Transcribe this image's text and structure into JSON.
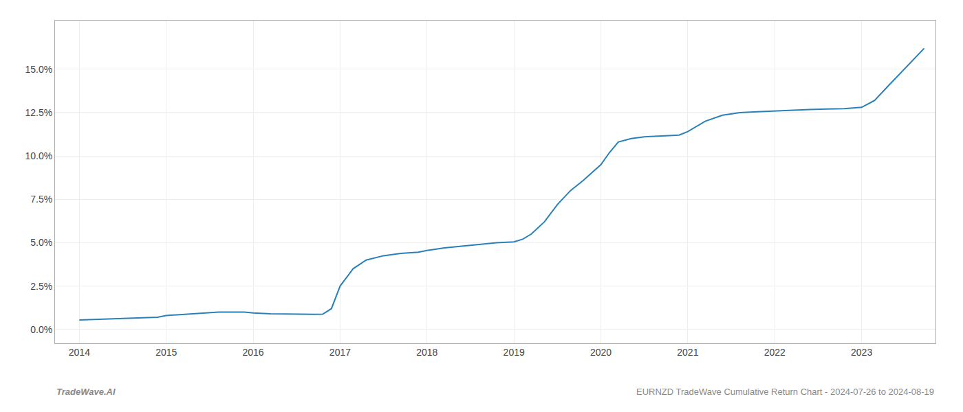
{
  "chart_data": {
    "type": "line",
    "x": [
      2014.0,
      2014.3,
      2014.6,
      2014.9,
      2015.0,
      2015.3,
      2015.6,
      2015.9,
      2016.0,
      2016.2,
      2016.4,
      2016.55,
      2016.65,
      2016.7,
      2016.8,
      2016.9,
      2017.0,
      2017.15,
      2017.3,
      2017.5,
      2017.7,
      2017.9,
      2018.0,
      2018.2,
      2018.4,
      2018.6,
      2018.8,
      2019.0,
      2019.1,
      2019.2,
      2019.35,
      2019.5,
      2019.65,
      2019.8,
      2020.0,
      2020.1,
      2020.2,
      2020.35,
      2020.5,
      2020.7,
      2020.9,
      2021.0,
      2021.2,
      2021.4,
      2021.6,
      2021.8,
      2022.0,
      2022.2,
      2022.4,
      2022.6,
      2022.8,
      2023.0,
      2023.15,
      2023.3,
      2023.45,
      2023.6,
      2023.72
    ],
    "values": [
      0.55,
      0.6,
      0.65,
      0.7,
      0.8,
      0.9,
      1.0,
      1.0,
      0.95,
      0.9,
      0.88,
      0.87,
      0.87,
      0.87,
      0.88,
      1.2,
      2.5,
      3.5,
      4.0,
      4.25,
      4.38,
      4.45,
      4.55,
      4.7,
      4.8,
      4.9,
      5.0,
      5.05,
      5.2,
      5.5,
      6.2,
      7.2,
      8.0,
      8.6,
      9.5,
      10.2,
      10.8,
      11.0,
      11.1,
      11.15,
      11.2,
      11.4,
      12.0,
      12.35,
      12.5,
      12.55,
      12.6,
      12.65,
      12.68,
      12.7,
      12.72,
      12.8,
      13.2,
      14.0,
      14.8,
      15.6,
      16.2
    ],
    "color": "#2980b9",
    "xlim": [
      2013.72,
      2023.85
    ],
    "xticks": [
      2014,
      2015,
      2016,
      2017,
      2018,
      2019,
      2020,
      2021,
      2022,
      2023
    ],
    "ylim": [
      -0.8,
      17.8
    ],
    "yticks": [
      {
        "value": 0.0,
        "label": "0.0%"
      },
      {
        "value": 2.5,
        "label": "2.5%"
      },
      {
        "value": 5.0,
        "label": "5.0%"
      },
      {
        "value": 7.5,
        "label": "7.5%"
      },
      {
        "value": 10.0,
        "label": "10.0%"
      },
      {
        "value": 12.5,
        "label": "12.5%"
      },
      {
        "value": 15.0,
        "label": "15.0%"
      }
    ],
    "grid": true,
    "annotations": [
      "TradeWave.AI",
      "EURNZD TradeWave Cumulative Return Chart - 2024-07-26 to 2024-08-19"
    ]
  }
}
